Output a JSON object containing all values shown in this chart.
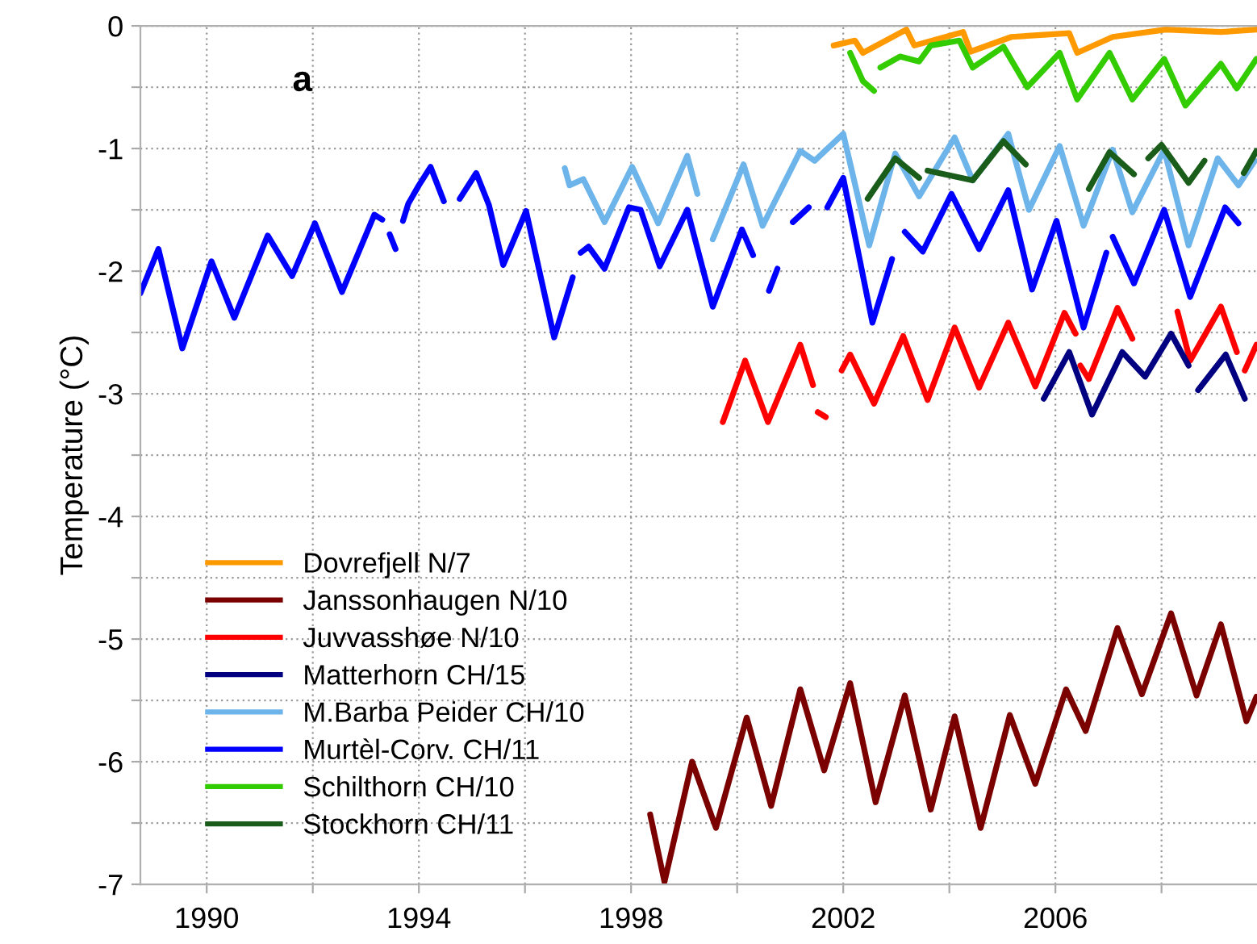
{
  "chart_data": {
    "type": "line",
    "ylabel": "Temperature (°C)",
    "annotations": [
      "a"
    ],
    "xlim": [
      1988.75,
      2009.8
    ],
    "xticks": [
      1990,
      {
        "value": 1992,
        "label": null
      },
      1994,
      {
        "value": 1996,
        "label": null
      },
      1998,
      {
        "value": 2000,
        "label": null
      },
      2002,
      {
        "value": 2004,
        "label": null
      },
      2006,
      {
        "value": 2008,
        "label": null
      }
    ],
    "ylim": [
      -7,
      0
    ],
    "yticks": [
      0,
      {
        "value": -0.5,
        "label": null
      },
      -1,
      {
        "value": -1.5,
        "label": null
      },
      -2,
      {
        "value": -2.5,
        "label": null
      },
      -3,
      {
        "value": -3.5,
        "label": null
      },
      -4,
      {
        "value": -4.5,
        "label": null
      },
      -5,
      {
        "value": -5.5,
        "label": null
      },
      -6,
      {
        "value": -6.5,
        "label": null
      },
      -7
    ],
    "grid": true,
    "legend": "bottom left",
    "marker": "none",
    "line_style": "solid",
    "series": [
      {
        "name": "Dovrefjell N/7",
        "color": "#ff9900",
        "x": [
          2001.82,
          2002.22,
          2002.37,
          2003.19,
          2003.34,
          2004.26,
          2004.4,
          2005.17,
          2006.26,
          2006.41,
          2007.08,
          2008.08,
          2009.12,
          2009.79
        ],
        "values": [
          -0.16,
          -0.12,
          -0.22,
          -0.03,
          -0.16,
          -0.05,
          -0.21,
          -0.09,
          -0.06,
          -0.22,
          -0.09,
          -0.03,
          -0.05,
          -0.03
        ]
      },
      {
        "name": "Janssonhaugen N/10",
        "color": "#7b0000",
        "x": [
          1998.36,
          1998.63,
          1999.15,
          1999.6,
          2000.18,
          2000.64,
          2001.19,
          2001.64,
          2002.13,
          2002.61,
          2003.16,
          2003.65,
          2004.1,
          2004.59,
          2005.14,
          2005.62,
          2006.2,
          2006.57,
          2007.17,
          2007.63,
          2008.18,
          2008.66,
          2009.12,
          2009.6,
          2009.79
        ],
        "values": [
          -6.43,
          -6.98,
          -6.0,
          -6.54,
          -5.64,
          -6.36,
          -5.41,
          -6.07,
          -5.36,
          -6.33,
          -5.46,
          -6.39,
          -5.63,
          -6.54,
          -5.62,
          -6.18,
          -5.41,
          -5.75,
          -4.91,
          -5.45,
          -4.79,
          -5.46,
          -4.88,
          -5.67,
          -5.47
        ]
      },
      {
        "name": "Juvvasshøe N/10",
        "color": "#ff0000",
        "x": [
          1999.73,
          2000.15,
          2000.58,
          2001.19,
          2001.43,
          2001.48,
          2001.52,
          2001.67,
          2001.8,
          2001.97,
          2002.13,
          2002.58,
          2003.13,
          2003.59,
          2004.1,
          2004.56,
          2005.11,
          2005.62,
          2006.17,
          2006.38,
          2006.42,
          2006.47,
          2006.63,
          2007.17,
          2007.45,
          2007.9,
          2008.3,
          2008.54,
          2009.12,
          2009.42,
          2009.5,
          2009.57,
          2009.79
        ],
        "values": [
          -3.23,
          -2.73,
          -3.23,
          -2.6,
          -2.93,
          null,
          -3.15,
          -3.19,
          null,
          -2.81,
          -2.68,
          -3.08,
          -2.53,
          -3.05,
          -2.46,
          -2.95,
          -2.42,
          -2.94,
          -2.34,
          -2.51,
          null,
          -2.77,
          -2.88,
          -2.3,
          -2.55,
          null,
          -2.33,
          -2.73,
          -2.29,
          -2.66,
          null,
          -2.81,
          -2.6
        ]
      },
      {
        "name": "Matterhorn CH/15",
        "color": "#000080",
        "x": [
          2005.78,
          2006.26,
          2006.69,
          2007.26,
          2007.69,
          2008.18,
          2008.51,
          2008.6,
          2008.69,
          2009.21,
          2009.57
        ],
        "values": [
          -3.04,
          -2.66,
          -3.17,
          -2.66,
          -2.86,
          -2.51,
          -2.77,
          null,
          -2.97,
          -2.68,
          -3.04
        ]
      },
      {
        "name": "M.Barba Peider CH/10",
        "color": "#6cb4ea",
        "x": [
          1996.75,
          1996.84,
          1997.1,
          1997.5,
          1998.02,
          1998.51,
          1999.06,
          1999.25,
          1999.4,
          1999.54,
          2000.12,
          2000.48,
          2001.19,
          2001.46,
          2002.0,
          2002.49,
          2002.98,
          2003.43,
          2004.1,
          2004.44,
          2005.11,
          2005.5,
          2006.08,
          2006.53,
          2007.08,
          2007.45,
          2008.05,
          2008.51,
          2009.06,
          2009.45,
          2009.76
        ],
        "values": [
          -1.16,
          -1.3,
          -1.25,
          -1.6,
          -1.15,
          -1.61,
          -1.06,
          -1.37,
          null,
          -1.74,
          -1.13,
          -1.63,
          -1.02,
          -1.1,
          -0.88,
          -1.79,
          -1.04,
          -1.39,
          -0.91,
          -1.26,
          -0.88,
          -1.5,
          -0.98,
          -1.63,
          -1.01,
          -1.52,
          -1.01,
          -1.79,
          -1.08,
          -1.3,
          -1.1
        ]
      },
      {
        "name": "Murtèl-Corv. CH/11",
        "color": "#0000ff",
        "x": [
          1988.75,
          1989.09,
          1989.54,
          1990.09,
          1990.52,
          1991.15,
          1991.61,
          1992.04,
          1992.55,
          1993.16,
          1993.31,
          1993.38,
          1993.45,
          1993.56,
          1993.65,
          1993.7,
          1993.8,
          1994.0,
          1994.22,
          1994.47,
          1994.6,
          1994.77,
          1995.08,
          1995.32,
          1995.59,
          1996.02,
          1996.55,
          1996.9,
          1996.97,
          1997.05,
          1997.2,
          1997.5,
          1997.96,
          1998.18,
          1998.54,
          1999.06,
          1999.54,
          2000.09,
          2000.3,
          2000.45,
          2000.6,
          2000.76,
          2000.95,
          2001.05,
          2001.35,
          2001.5,
          2001.7,
          2002.0,
          2002.55,
          2002.92,
          2003.04,
          2003.16,
          2003.5,
          2004.04,
          2004.56,
          2005.11,
          2005.56,
          2006.02,
          2006.53,
          2006.96,
          2007.02,
          2007.08,
          2007.48,
          2008.05,
          2008.54,
          2009.2,
          2009.45
        ],
        "values": [
          -2.18,
          -1.82,
          -2.63,
          -1.92,
          -2.38,
          -1.71,
          -2.04,
          -1.61,
          -2.17,
          -1.54,
          -1.58,
          null,
          -1.7,
          -1.82,
          null,
          -1.59,
          -1.45,
          -1.3,
          -1.15,
          -1.43,
          null,
          -1.41,
          -1.2,
          -1.46,
          -1.95,
          -1.51,
          -2.54,
          -2.05,
          null,
          -1.85,
          -1.8,
          -1.98,
          -1.48,
          -1.5,
          -1.96,
          -1.5,
          -2.29,
          -1.66,
          -1.87,
          null,
          -2.16,
          -1.98,
          null,
          -1.6,
          -1.48,
          null,
          -1.48,
          -1.24,
          -2.42,
          -1.9,
          null,
          -1.68,
          -1.84,
          -1.37,
          -1.82,
          -1.34,
          -2.15,
          -1.59,
          -2.46,
          -1.85,
          null,
          -1.72,
          -2.1,
          -1.5,
          -2.21,
          -1.48,
          -1.61
        ]
      },
      {
        "name": "Schilthorn CH/10",
        "color": "#33cc00",
        "x": [
          2002.13,
          2002.37,
          2002.58,
          2002.64,
          2002.7,
          2003.07,
          2003.43,
          2003.65,
          2004.19,
          2004.44,
          2005.02,
          2005.47,
          2006.08,
          2006.41,
          2007.02,
          2007.45,
          2008.05,
          2008.45,
          2009.12,
          2009.42,
          2009.79
        ],
        "values": [
          -0.22,
          -0.45,
          -0.53,
          null,
          -0.34,
          -0.25,
          -0.29,
          -0.16,
          -0.12,
          -0.34,
          -0.17,
          -0.5,
          -0.22,
          -0.6,
          -0.22,
          -0.6,
          -0.27,
          -0.65,
          -0.31,
          -0.51,
          -0.27
        ]
      },
      {
        "name": "Stockhorn CH/11",
        "color": "#1a5c1a",
        "x": [
          2002.46,
          2002.98,
          2003.43,
          2003.5,
          2003.59,
          2004.44,
          2005.02,
          2005.44,
          2006.0,
          2006.63,
          2007.02,
          2007.48,
          2007.6,
          2007.75,
          2008.0,
          2008.51,
          2008.81,
          2009.2,
          2009.55,
          2009.79
        ],
        "values": [
          -1.41,
          -1.08,
          -1.24,
          null,
          -1.18,
          -1.26,
          -0.94,
          -1.13,
          null,
          -1.33,
          -1.03,
          -1.21,
          null,
          -1.08,
          -0.97,
          -1.28,
          -1.1,
          null,
          -1.2,
          -1.02
        ]
      }
    ]
  }
}
